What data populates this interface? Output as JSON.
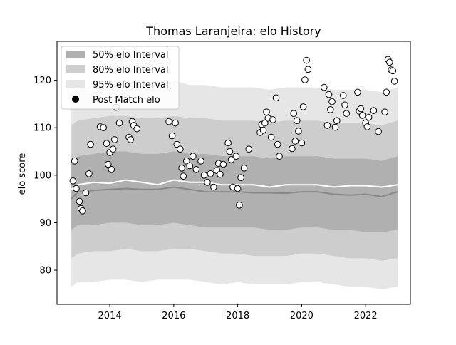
{
  "chart_data": {
    "type": "scatter",
    "title": "Thomas Laranjeira: elo History",
    "xlabel": "",
    "ylabel": "elo score",
    "xlim": [
      2012.35,
      2023.4
    ],
    "ylim": [
      72.8,
      128.2
    ],
    "x_ticks": [
      2014,
      2016,
      2018,
      2020,
      2022
    ],
    "x_tick_labels": [
      "2014",
      "2016",
      "2018",
      "2020",
      "2022"
    ],
    "y_ticks": [
      80,
      90,
      100,
      110,
      120
    ],
    "y_tick_labels": [
      "80",
      "90",
      "100",
      "110",
      "120"
    ],
    "grid": false,
    "legend": {
      "placement": "top-left",
      "entries": [
        "50% elo Interval",
        "80% elo Interval",
        "95% elo Interval",
        "Post Match elo"
      ]
    },
    "colors": {
      "band50": "#b0b0b0",
      "band80": "#cdcdcd",
      "band95": "#e6e6e6",
      "median_line": "#888888",
      "mean_line": "#ffffff",
      "marker_face": "#ffffff",
      "marker_edge": "#000000"
    },
    "bands": {
      "x": [
        2012.8,
        2013.0,
        2013.5,
        2014.0,
        2014.5,
        2015.0,
        2015.5,
        2016.0,
        2016.5,
        2017.0,
        2017.5,
        2018.0,
        2018.5,
        2019.0,
        2019.5,
        2020.0,
        2020.5,
        2021.0,
        2021.5,
        2022.0,
        2022.5,
        2023.0
      ],
      "lower95": [
        76.5,
        77.5,
        77.5,
        78.0,
        78.0,
        77.5,
        78.0,
        78.0,
        78.0,
        77.5,
        77.0,
        77.5,
        77.0,
        77.0,
        77.0,
        77.5,
        77.5,
        77.0,
        76.5,
        76.5,
        76.0,
        76.5
      ],
      "lower80": [
        82.5,
        83.5,
        84.0,
        84.0,
        84.5,
        84.0,
        84.0,
        84.5,
        84.5,
        84.0,
        83.5,
        83.5,
        83.0,
        83.0,
        83.0,
        83.5,
        83.5,
        83.0,
        82.5,
        82.5,
        82.0,
        82.5
      ],
      "lower50": [
        88.5,
        89.5,
        89.5,
        90.0,
        90.0,
        89.5,
        89.5,
        90.0,
        89.5,
        89.0,
        89.0,
        89.0,
        89.0,
        88.5,
        88.5,
        89.0,
        89.0,
        88.5,
        88.5,
        88.0,
        88.0,
        88.5
      ],
      "median": [
        95.0,
        96.5,
        96.8,
        97.0,
        97.2,
        97.0,
        97.0,
        97.5,
        97.0,
        96.5,
        96.5,
        96.5,
        96.3,
        96.3,
        96.2,
        96.5,
        96.5,
        96.0,
        95.8,
        96.0,
        95.5,
        96.5
      ],
      "mean": [
        97.0,
        98.0,
        98.5,
        98.3,
        99.0,
        98.5,
        98.0,
        99.0,
        98.5,
        98.5,
        98.0,
        98.0,
        98.0,
        97.5,
        98.0,
        98.0,
        98.0,
        97.5,
        97.8,
        97.8,
        97.5,
        98.0
      ],
      "upper50": [
        103.0,
        104.0,
        104.5,
        105.0,
        105.0,
        104.5,
        104.5,
        105.0,
        104.5,
        104.5,
        104.0,
        104.0,
        104.0,
        103.5,
        104.0,
        104.0,
        104.0,
        103.5,
        103.5,
        103.5,
        103.0,
        104.0
      ],
      "upper80": [
        110.5,
        111.5,
        112.0,
        112.5,
        112.5,
        112.0,
        112.0,
        112.5,
        112.0,
        112.0,
        111.5,
        111.5,
        111.5,
        111.0,
        111.5,
        111.5,
        111.5,
        111.0,
        111.0,
        111.0,
        110.5,
        111.5
      ],
      "upper95": [
        117.0,
        118.5,
        119.0,
        119.5,
        119.5,
        119.0,
        119.0,
        120.0,
        119.0,
        119.0,
        118.5,
        118.5,
        118.5,
        118.0,
        118.5,
        118.5,
        118.5,
        118.0,
        118.0,
        118.0,
        117.5,
        118.5
      ]
    },
    "points": {
      "x": [
        2012.85,
        2012.9,
        2012.95,
        2013.05,
        2013.1,
        2013.15,
        2013.25,
        2013.35,
        2013.4,
        2013.7,
        2013.8,
        2013.9,
        2013.95,
        2014.0,
        2014.05,
        2014.1,
        2014.15,
        2014.2,
        2014.3,
        2014.6,
        2014.65,
        2014.7,
        2014.75,
        2014.85,
        2015.85,
        2015.95,
        2016.05,
        2016.1,
        2016.2,
        2016.25,
        2016.3,
        2016.4,
        2016.5,
        2016.6,
        2016.7,
        2016.85,
        2016.95,
        2017.05,
        2017.15,
        2017.25,
        2017.35,
        2017.4,
        2017.45,
        2017.55,
        2017.7,
        2017.75,
        2017.8,
        2017.85,
        2017.95,
        2018.0,
        2018.05,
        2018.1,
        2018.2,
        2018.35,
        2018.7,
        2018.75,
        2018.8,
        2018.85,
        2018.9,
        2018.95,
        2019.05,
        2019.1,
        2019.2,
        2019.25,
        2019.3,
        2019.7,
        2019.75,
        2019.8,
        2019.85,
        2019.9,
        2020.0,
        2020.05,
        2020.1,
        2020.15,
        2020.2,
        2020.7,
        2020.8,
        2020.85,
        2020.9,
        2020.95,
        2021.05,
        2021.1,
        2021.3,
        2021.35,
        2021.4,
        2021.75,
        2021.8,
        2021.85,
        2021.9,
        2022.0,
        2022.05,
        2022.1,
        2022.25,
        2022.4,
        2022.6,
        2022.65,
        2022.7,
        2022.75,
        2022.8,
        2022.85,
        2022.9
      ],
      "y": [
        98.8,
        103.0,
        97.2,
        94.5,
        93.0,
        92.5,
        96.3,
        100.3,
        106.5,
        110.2,
        110.0,
        106.7,
        102.3,
        104.8,
        101.2,
        105.5,
        107.5,
        114.3,
        111.0,
        108.0,
        107.5,
        111.3,
        110.5,
        109.8,
        111.3,
        108.3,
        111.0,
        106.5,
        105.5,
        101.5,
        99.8,
        103.0,
        102.0,
        104.0,
        101.2,
        103.0,
        100.0,
        98.5,
        100.3,
        97.5,
        101.0,
        102.5,
        100.2,
        102.3,
        106.8,
        105.0,
        103.3,
        97.5,
        104.0,
        97.2,
        93.7,
        99.5,
        101.5,
        105.5,
        109.0,
        110.7,
        109.5,
        111.0,
        113.3,
        112.0,
        108.0,
        111.7,
        116.3,
        106.5,
        104.0,
        105.6,
        113.0,
        107.2,
        111.5,
        109.3,
        106.8,
        114.4,
        120.1,
        124.2,
        122.3,
        118.5,
        110.5,
        117.0,
        113.8,
        115.5,
        110.1,
        111.5,
        116.8,
        114.8,
        113.0,
        117.5,
        113.5,
        114.0,
        112.6,
        111.0,
        110.2,
        112.2,
        113.6,
        109.2,
        113.3,
        117.5,
        124.4,
        123.8,
        122.2,
        122.0,
        119.8
      ]
    }
  }
}
